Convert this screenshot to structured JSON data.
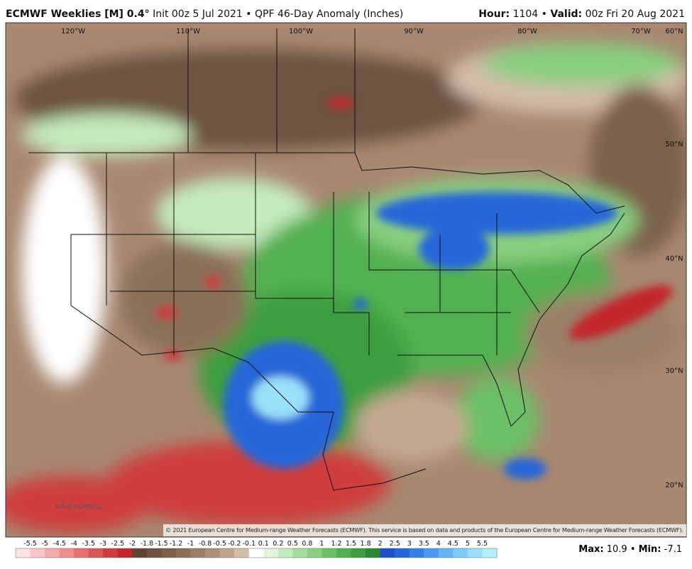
{
  "header": {
    "model": "ECMWF Weeklies [M] 0.4°",
    "subtitle": "Init 00z 5 Jul 2021",
    "separator": "•",
    "product": "QPF 46-Day Anomaly (Inches)",
    "hour_label": "Hour:",
    "hour": 1104,
    "valid_label": "Valid:",
    "valid": "00z Fri 20 Aug 2021"
  },
  "map": {
    "longitudes": [
      "120°W",
      "110°W",
      "100°W",
      "90°W",
      "80°W",
      "70°W"
    ],
    "latitudes": [
      "60°N",
      "50°N",
      "40°N",
      "30°N",
      "20°N"
    ],
    "logo": "WEATHERBELL",
    "copyright": "© 2021 European Centre for Medium-range Weather Forecasts (ECMWF). This service is based on data and products of the European Centre for Medium-range Weather Forecasts (ECMWF)."
  },
  "legend": {
    "labels": [
      -5.5,
      -5,
      -4.5,
      -4,
      -3.5,
      -3,
      -2.5,
      -2,
      -1.8,
      -1.5,
      -1.2,
      -1,
      -0.8,
      -0.5,
      -0.2,
      -0.1,
      0.1,
      0.2,
      0.5,
      0.8,
      1,
      1.2,
      1.5,
      1.8,
      2,
      2.5,
      3,
      3.5,
      4,
      4.5,
      5,
      5.5
    ],
    "colors": [
      "#fde2e2",
      "#f8c6c6",
      "#f2a9a9",
      "#ec8e8e",
      "#e47272",
      "#da5656",
      "#cf3c3c",
      "#c2262c",
      "#5e4436",
      "#6d5241",
      "#7c604c",
      "#8b6f59",
      "#9c7f68",
      "#ad9079",
      "#bfa48d",
      "#d3bca8",
      "#ffffff",
      "#e2f5dc",
      "#c4ebbc",
      "#a6dd9c",
      "#88cf80",
      "#6cc066",
      "#52b050",
      "#3c9e40",
      "#2a8a33",
      "#1c4fc8",
      "#2766d8",
      "#3680e4",
      "#4c9aee",
      "#66b4f4",
      "#80ccf8",
      "#9ae0fa",
      "#b4f0fc"
    ],
    "max_label": "Max:",
    "max": 10.9,
    "min_label": "Min:",
    "min": -7.1
  }
}
